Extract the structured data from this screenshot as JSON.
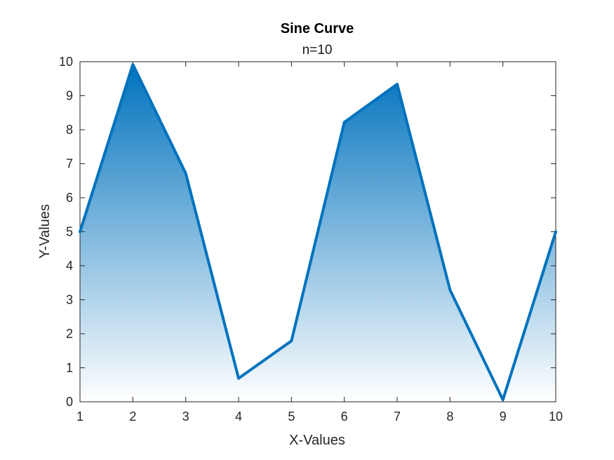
{
  "chart_data": {
    "type": "area",
    "title": "Sine Curve",
    "subtitle": "n=10",
    "xlabel": "X-Values",
    "ylabel": "Y-Values",
    "x": [
      1,
      2,
      3,
      4,
      5,
      6,
      7,
      8,
      9,
      10
    ],
    "y": [
      5.0,
      9.92,
      6.72,
      0.69,
      1.79,
      8.22,
      9.34,
      3.29,
      0.06,
      5.0
    ],
    "xlim": [
      1,
      10
    ],
    "ylim": [
      0,
      10
    ],
    "xticks": [
      "1",
      "2",
      "3",
      "4",
      "5",
      "6",
      "7",
      "8",
      "9",
      "10"
    ],
    "yticks": [
      "0",
      "1",
      "2",
      "3",
      "4",
      "5",
      "6",
      "7",
      "8",
      "9",
      "10"
    ],
    "grid": false,
    "line_color": "#0072BD",
    "fill_gradient": [
      "#0072BD",
      "#ffffff"
    ]
  }
}
